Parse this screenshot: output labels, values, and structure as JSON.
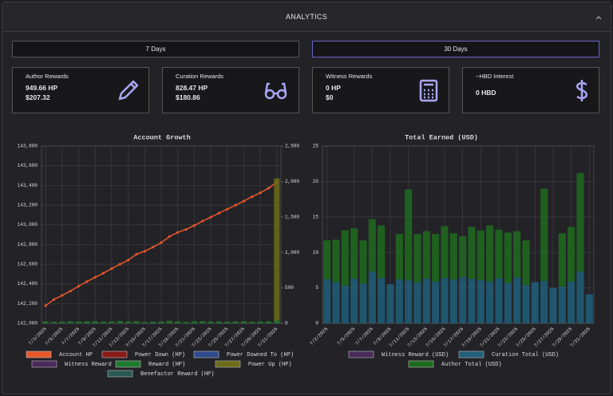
{
  "header": {
    "title": "ANALYTICS"
  },
  "filters": [
    "7 Days",
    "30 Days"
  ],
  "cards": [
    {
      "title": "Author Rewards",
      "lines": [
        "949.66 HP",
        "$207.32"
      ]
    },
    {
      "title": "Curation Rewards",
      "lines": [
        "828.47 HP",
        "$180.86"
      ]
    },
    {
      "title": "Witness Rewards",
      "lines": [
        "0 HP",
        "$0"
      ]
    },
    {
      "title": "~HBD Interest",
      "lines": [
        "0 HBD"
      ]
    }
  ],
  "chart_data": [
    {
      "type": "line",
      "title": "Account Growth",
      "categories": [
        "7/3/2025",
        null,
        "7/5/2025",
        null,
        "7/7/2025",
        null,
        "7/9/2025",
        null,
        "7/11/2025",
        null,
        "7/13/2025",
        null,
        "7/15/2025",
        null,
        "7/17/2025",
        null,
        "7/19/2025",
        null,
        "7/21/2025",
        null,
        "7/23/2025",
        null,
        "7/25/2025",
        null,
        "7/27/2025",
        null,
        "7/29/2025",
        null,
        "7/31/2025"
      ],
      "ylim": [
        142000,
        143800
      ],
      "yticks": [
        {
          "value": 142000,
          "label": "142,000"
        },
        {
          "value": 142200,
          "label": "142,200"
        },
        {
          "value": 142400,
          "label": "142,400"
        },
        {
          "value": 142600,
          "label": "142,600"
        },
        {
          "value": 142800,
          "label": "142,800"
        },
        {
          "value": 143000,
          "label": "143,000"
        },
        {
          "value": 143200,
          "label": "143,200"
        },
        {
          "value": 143400,
          "label": "143,400"
        },
        {
          "value": 143600,
          "label": "143,600"
        },
        {
          "value": 143800,
          "label": "143,800"
        }
      ],
      "y2lim": [
        0,
        2500
      ],
      "y2ticks": [
        0,
        500,
        {
          "value": 1000,
          "label": "1,000"
        },
        {
          "value": 1500,
          "label": "1,500"
        },
        {
          "value": 2000,
          "label": "2,000"
        },
        {
          "value": 2500,
          "label": "2,500"
        }
      ],
      "grid": true,
      "series": [
        {
          "name": "Account HP",
          "type": "line",
          "color": "#e8572a",
          "values": [
            142180,
            142242,
            142284,
            142328,
            142378,
            142424,
            142468,
            142510,
            142556,
            142600,
            142642,
            142702,
            142732,
            142774,
            142820,
            142882,
            142924,
            142954,
            142994,
            143038,
            143078,
            143120,
            143160,
            143200,
            143242,
            143286,
            143326,
            143372,
            143432
          ]
        },
        {
          "name": "Power Down (HP)",
          "type": "bar",
          "axis": "y2",
          "color": "#8b1a1a",
          "values": [
            0,
            0,
            0,
            0,
            0,
            0,
            0,
            0,
            0,
            0,
            0,
            0,
            0,
            0,
            0,
            0,
            0,
            0,
            0,
            0,
            0,
            0,
            0,
            0,
            0,
            0,
            0,
            0,
            0
          ]
        },
        {
          "name": "Power Downed To (HP)",
          "type": "bar",
          "axis": "y2",
          "color": "#2f4b8a",
          "values": [
            0,
            0,
            0,
            0,
            0,
            0,
            0,
            0,
            0,
            0,
            0,
            0,
            0,
            0,
            0,
            0,
            0,
            0,
            0,
            0,
            0,
            0,
            0,
            0,
            0,
            0,
            0,
            0,
            0
          ]
        },
        {
          "name": "Witness Reward (HP)",
          "type": "bar",
          "axis": "y2",
          "color": "#4a2a5a",
          "values": [
            0,
            0,
            0,
            0,
            0,
            0,
            0,
            0,
            0,
            0,
            0,
            0,
            0,
            0,
            0,
            0,
            0,
            0,
            0,
            0,
            0,
            0,
            0,
            0,
            0,
            0,
            0,
            0,
            0
          ]
        },
        {
          "name": "Reward (HP)",
          "type": "bar",
          "axis": "y2",
          "color": "#1e7a2e",
          "values": [
            28,
            22,
            24,
            30,
            26,
            28,
            30,
            24,
            28,
            32,
            26,
            30,
            18,
            24,
            26,
            36,
            28,
            20,
            28,
            30,
            26,
            28,
            24,
            26,
            28,
            24,
            26,
            28,
            40
          ]
        },
        {
          "name": "Power Up (HP)",
          "type": "bar",
          "axis": "y2",
          "color": "#6b6b1a",
          "values": [
            0,
            0,
            0,
            0,
            0,
            0,
            0,
            0,
            0,
            0,
            0,
            0,
            0,
            0,
            0,
            0,
            0,
            0,
            0,
            0,
            0,
            0,
            0,
            0,
            0,
            0,
            0,
            0,
            2005
          ]
        },
        {
          "name": "Benefactor Reward (HP)",
          "type": "bar",
          "axis": "y2",
          "color": "#2a5a55",
          "values": [
            0,
            0,
            0,
            0,
            0,
            0,
            0,
            0,
            0,
            0,
            0,
            0,
            0,
            0,
            0,
            0,
            0,
            0,
            0,
            0,
            0,
            0,
            0,
            0,
            0,
            0,
            0,
            0,
            0
          ]
        }
      ]
    },
    {
      "type": "bar",
      "title": "Total Earned (USD)",
      "categories": [
        "7/2/2025",
        null,
        null,
        "7/5/2025",
        null,
        "7/7/2025",
        null,
        "7/9/2025",
        null,
        "7/11/2025",
        null,
        "7/13/2025",
        null,
        "7/15/2025",
        null,
        "7/17/2025",
        null,
        "7/19/2025",
        null,
        "7/21/2025",
        null,
        "7/23/2025",
        null,
        "7/25/2025",
        null,
        "7/27/2025",
        null,
        "7/29/2025",
        null,
        "7/31/2025"
      ],
      "ylim": [
        0,
        25
      ],
      "yticks": [
        0,
        5,
        10,
        15,
        20,
        25
      ],
      "grid": true,
      "series": [
        {
          "name": "Witness Reward (USD)",
          "color": "#4a2a5a",
          "values": [
            0,
            0,
            0,
            0,
            0,
            0,
            0,
            0,
            0,
            0,
            0,
            0,
            0,
            0,
            0,
            0,
            0,
            0,
            0,
            0,
            0,
            0,
            0,
            0,
            0,
            0,
            0,
            0,
            0,
            0
          ]
        },
        {
          "name": "Curation Total (USD)",
          "color": "#1f5f7a",
          "values": [
            6.2,
            5.8,
            5.3,
            6.3,
            5.6,
            7.3,
            6.4,
            5.5,
            6.2,
            6.1,
            5.8,
            6.3,
            5.9,
            6.4,
            6.2,
            6.5,
            6.3,
            6.1,
            5.9,
            6.4,
            5.7,
            6.5,
            5.4,
            5.8,
            6.0,
            5.0,
            5.2,
            5.9,
            7.3,
            4.1
          ]
        },
        {
          "name": "Author Total (USD)",
          "color": "#1e6b1e",
          "values": [
            5.5,
            6.0,
            7.8,
            7.1,
            6.1,
            7.4,
            7.4,
            0,
            6.4,
            12.8,
            6.8,
            6.7,
            6.7,
            7.3,
            6.5,
            5.8,
            7.3,
            7.0,
            7.9,
            6.8,
            7.1,
            6.5,
            6.3,
            0,
            13.0,
            0,
            7.5,
            7.7,
            13.9,
            0
          ]
        }
      ]
    }
  ]
}
